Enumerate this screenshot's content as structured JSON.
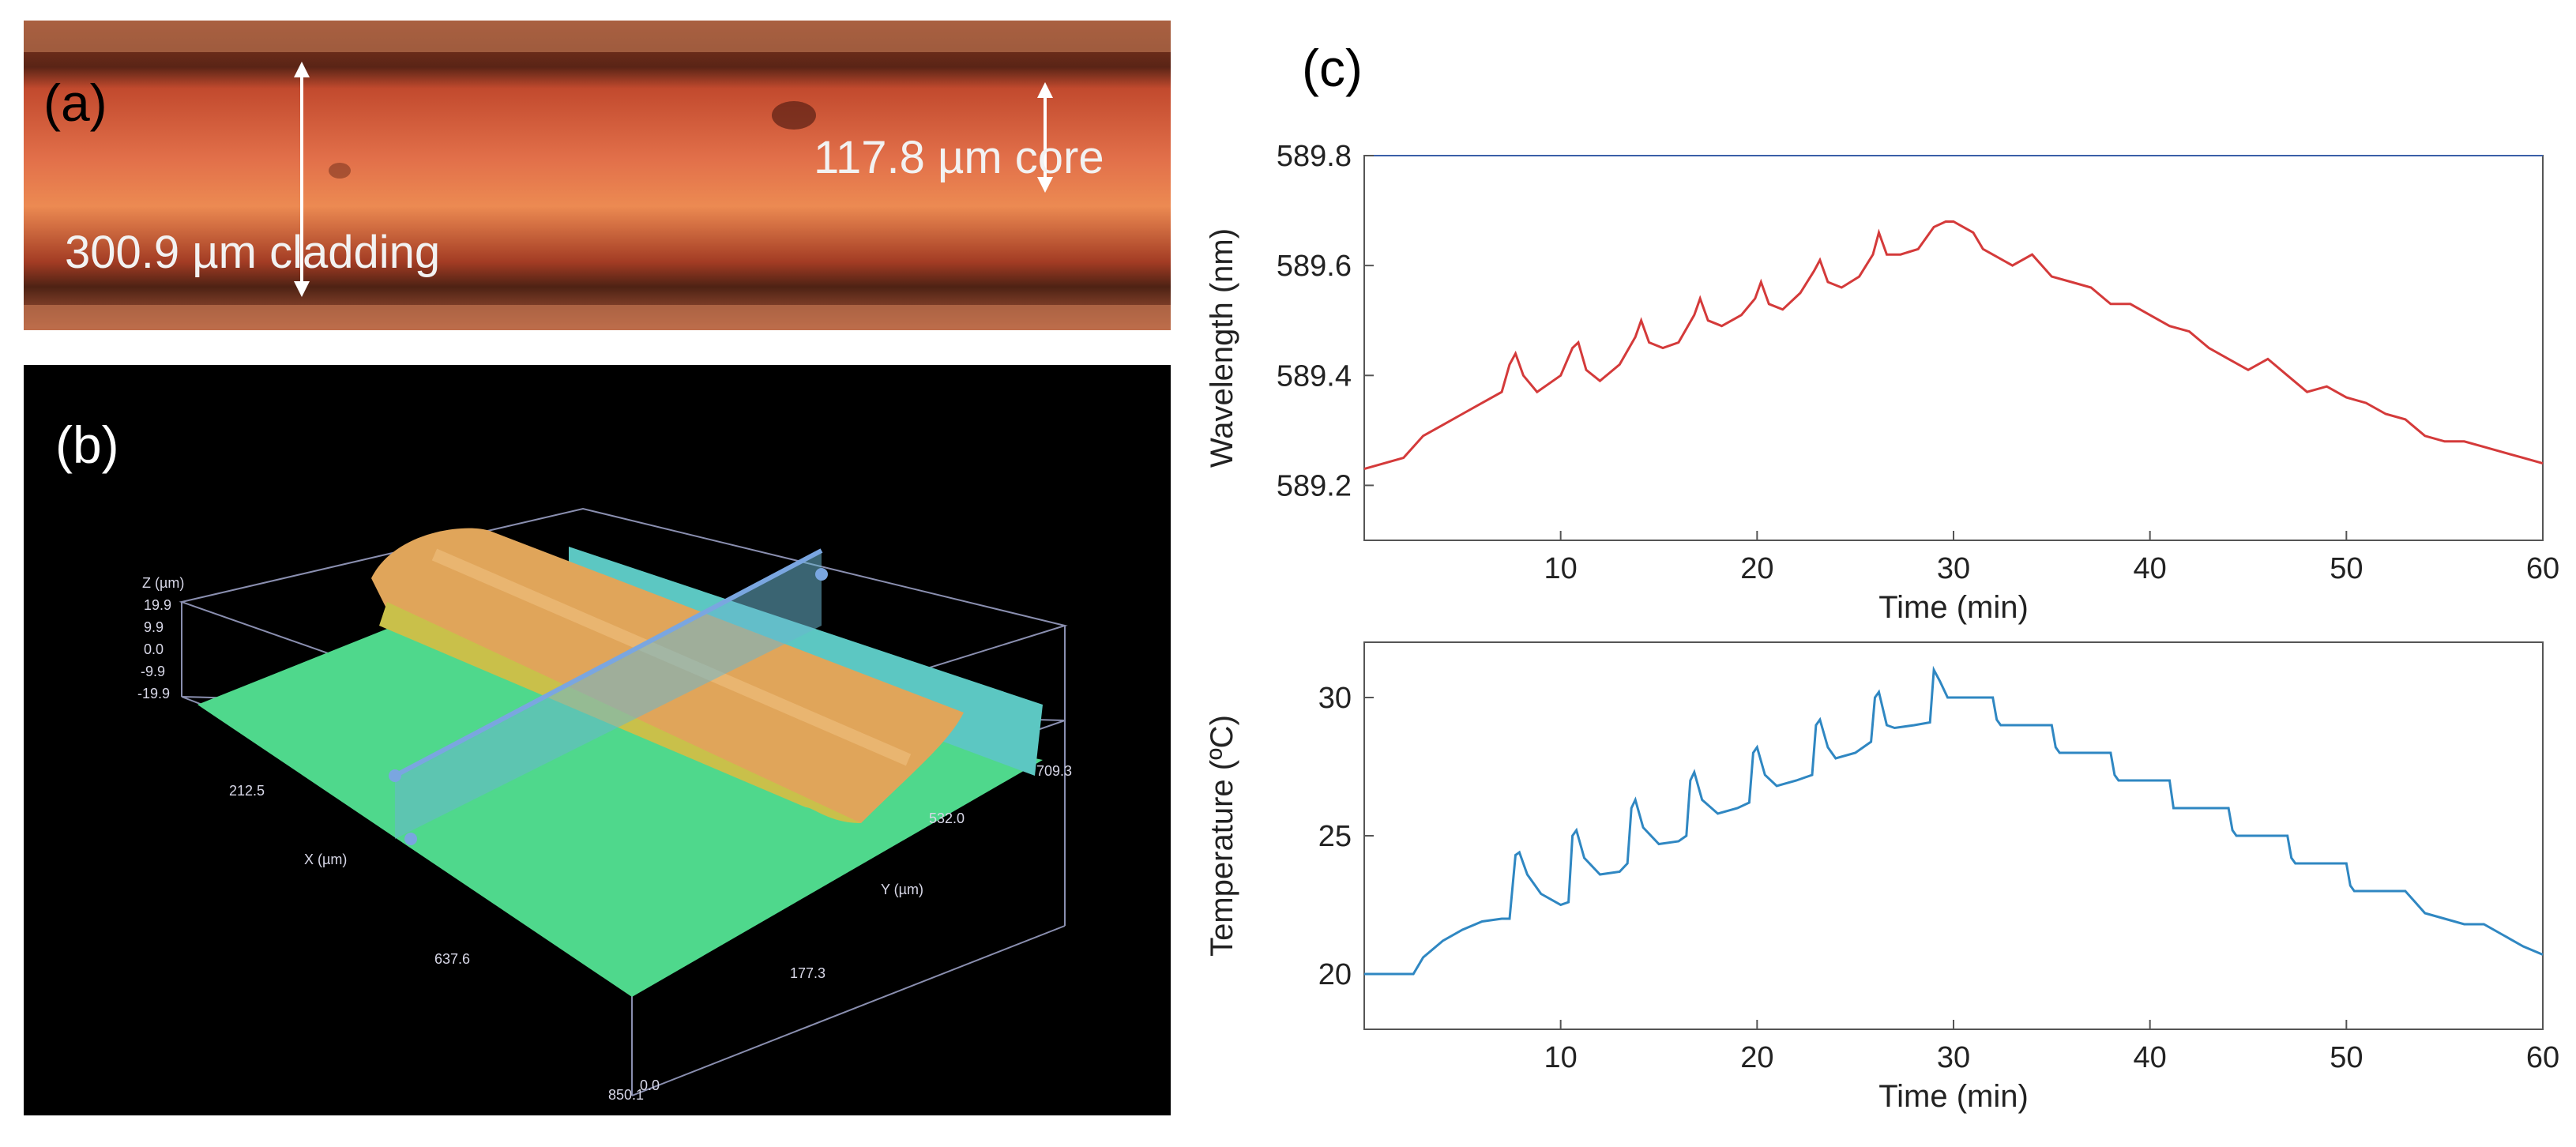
{
  "panels": {
    "a": {
      "label": "(a)",
      "cladding_annotation": "300.9 µm cladding",
      "core_annotation": "117.8 µm core"
    },
    "b": {
      "label": "(b)",
      "axis_z_label": "Z (µm)",
      "z_ticks": [
        "19.9",
        "9.9",
        "0.0",
        "-9.9",
        "-19.9"
      ],
      "axis_x_label": "X (µm)",
      "x_ticks": [
        "212.5",
        "637.6",
        "850.1"
      ],
      "axis_y_label": "Y (µm)",
      "y_ticks": [
        "709.3",
        "532.0",
        "177.3",
        "0.0"
      ]
    },
    "c": {
      "label": "(c)"
    }
  },
  "colors": {
    "wavelength_line": "#d43a3a",
    "temperature_line": "#2f87c2"
  },
  "chart_data": [
    {
      "type": "line",
      "title": "",
      "xlabel": "Time (min)",
      "ylabel": "Wavelength (nm)",
      "xlim": [
        0,
        60
      ],
      "ylim": [
        589.1,
        589.8
      ],
      "xticks": [
        10,
        20,
        30,
        40,
        50,
        60
      ],
      "yticks": [
        589.2,
        589.4,
        589.6,
        589.8
      ],
      "grid": false,
      "series": [
        {
          "name": "Wavelength",
          "x": [
            0,
            1,
            2,
            3,
            4,
            5,
            6,
            7,
            7.4,
            7.7,
            8.1,
            8.8,
            10,
            10.6,
            10.9,
            11.3,
            12,
            13,
            13.8,
            14.1,
            14.5,
            15.2,
            16,
            16.8,
            17.1,
            17.5,
            18.2,
            19.2,
            19.9,
            20.2,
            20.6,
            21.3,
            22.2,
            22.9,
            23.2,
            23.6,
            24.3,
            25.2,
            25.9,
            26.2,
            26.6,
            27.3,
            28.2,
            29,
            29.6,
            30,
            30.5,
            31,
            31.5,
            32,
            33,
            34,
            35,
            36,
            37,
            38,
            39,
            40,
            41,
            42,
            43,
            44,
            45,
            46,
            47,
            48,
            49,
            50,
            51,
            52,
            53,
            54,
            55,
            56,
            57,
            58,
            59,
            60
          ],
          "y": [
            589.23,
            589.24,
            589.25,
            589.29,
            589.31,
            589.33,
            589.35,
            589.37,
            589.42,
            589.44,
            589.4,
            589.37,
            589.4,
            589.45,
            589.46,
            589.41,
            589.39,
            589.42,
            589.47,
            589.5,
            589.46,
            589.45,
            589.46,
            589.51,
            589.54,
            589.5,
            589.49,
            589.51,
            589.54,
            589.57,
            589.53,
            589.52,
            589.55,
            589.59,
            589.61,
            589.57,
            589.56,
            589.58,
            589.62,
            589.66,
            589.62,
            589.62,
            589.63,
            589.67,
            589.68,
            589.68,
            589.67,
            589.66,
            589.63,
            589.62,
            589.6,
            589.62,
            589.58,
            589.57,
            589.56,
            589.53,
            589.53,
            589.51,
            589.49,
            589.48,
            589.45,
            589.43,
            589.41,
            589.43,
            589.4,
            589.37,
            589.38,
            589.36,
            589.35,
            589.33,
            589.32,
            589.29,
            589.28,
            589.28,
            589.27,
            589.26,
            589.25,
            589.24
          ]
        }
      ]
    },
    {
      "type": "line",
      "title": "",
      "xlabel": "Time (min)",
      "ylabel": "Temperature (ºC)",
      "xlim": [
        0,
        60
      ],
      "ylim": [
        18,
        32
      ],
      "xticks": [
        10,
        20,
        30,
        40,
        50,
        60
      ],
      "yticks": [
        20,
        25,
        30
      ],
      "grid": false,
      "series": [
        {
          "name": "Temperature",
          "x": [
            0,
            1,
            2,
            2.5,
            3,
            4,
            5,
            6,
            7,
            7.4,
            7.7,
            7.9,
            8.3,
            9,
            10,
            10.4,
            10.6,
            10.8,
            11.2,
            12,
            13,
            13.4,
            13.6,
            13.8,
            14.2,
            15,
            16,
            16.4,
            16.6,
            16.8,
            17.2,
            18,
            19,
            19.6,
            19.8,
            20,
            20.4,
            21,
            22,
            22.8,
            23,
            23.2,
            23.6,
            24,
            25,
            25.8,
            26,
            26.2,
            26.6,
            27,
            28,
            28.8,
            29,
            29.3,
            29.7,
            30,
            31,
            32,
            32.2,
            32.4,
            33,
            35,
            35.2,
            35.4,
            36,
            38,
            38.2,
            38.4,
            39,
            41,
            41.2,
            41.4,
            42,
            44,
            44.2,
            44.4,
            45,
            47,
            47.2,
            47.4,
            48,
            50,
            50.2,
            50.4,
            51,
            53,
            53.5,
            54,
            55,
            56,
            57,
            58,
            59,
            60
          ],
          "y": [
            20,
            20,
            20,
            20,
            20.6,
            21.2,
            21.6,
            21.9,
            22,
            22,
            24.3,
            24.4,
            23.6,
            22.9,
            22.5,
            22.6,
            25,
            25.2,
            24.2,
            23.6,
            23.7,
            24,
            26,
            26.3,
            25.3,
            24.7,
            24.8,
            25,
            27,
            27.3,
            26.3,
            25.8,
            26,
            26.2,
            28,
            28.2,
            27.2,
            26.8,
            27.0,
            27.2,
            29,
            29.2,
            28.2,
            27.8,
            28.0,
            28.4,
            30,
            30.2,
            29.0,
            28.9,
            29.0,
            29.1,
            31,
            30.6,
            30.0,
            30.0,
            30.0,
            30.0,
            29.2,
            29.0,
            29.0,
            29.0,
            28.2,
            28.0,
            28.0,
            28.0,
            27.2,
            27.0,
            27.0,
            27.0,
            26.0,
            26.0,
            26.0,
            26.0,
            25.2,
            25.0,
            25.0,
            25.0,
            24.2,
            24.0,
            24.0,
            24.0,
            23.2,
            23.0,
            23.0,
            23.0,
            22.6,
            22.2,
            22.0,
            21.8,
            21.8,
            21.4,
            21.0,
            20.7
          ]
        }
      ]
    }
  ]
}
